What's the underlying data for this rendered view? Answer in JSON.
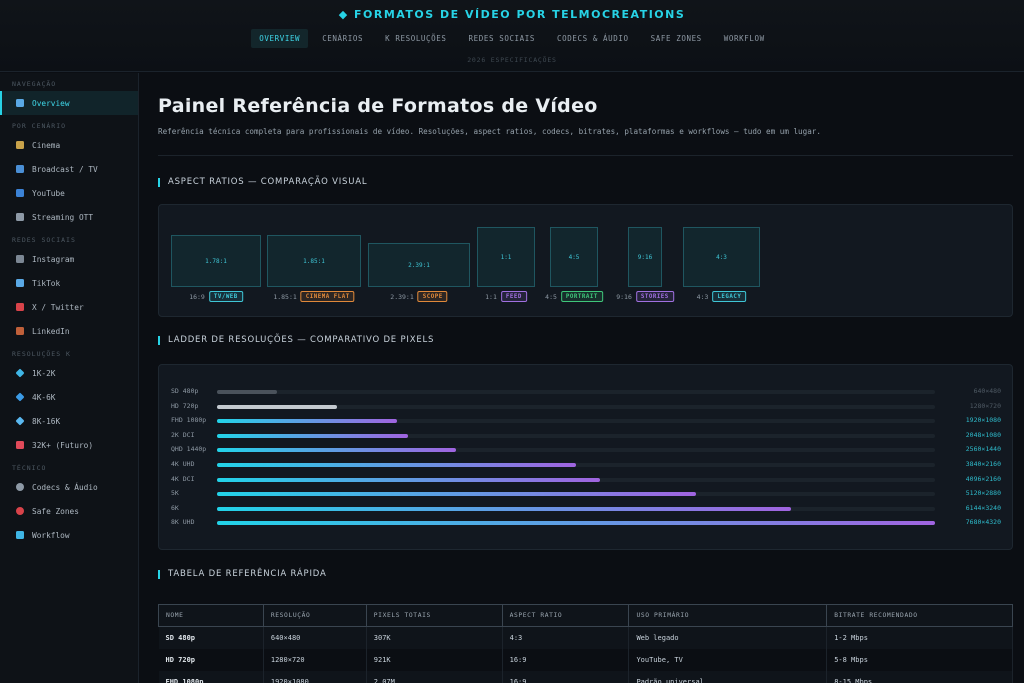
{
  "header": {
    "brand": "◆ FORMATOS DE VÍDEO POR TELMOCREATIONS",
    "subtitle": "2026 ESPECIFICAÇÕES",
    "tabs": [
      {
        "label": "OVERVIEW",
        "active": true
      },
      {
        "label": "CENÁRIOS",
        "active": false
      },
      {
        "label": "K RESOLUÇÕES",
        "active": false
      },
      {
        "label": "REDES SOCIAIS",
        "active": false
      },
      {
        "label": "CODECS & ÁUDIO",
        "active": false
      },
      {
        "label": "SAFE ZONES",
        "active": false
      },
      {
        "label": "WORKFLOW",
        "active": false
      }
    ]
  },
  "sidebar": {
    "sections": [
      {
        "title": "NAVEGAÇÃO",
        "items": [
          {
            "label": "Overview",
            "icon": "chart-icon",
            "color": "#5aa9e6",
            "active": true
          }
        ]
      },
      {
        "title": "POR CENÁRIO",
        "items": [
          {
            "label": "Cinema",
            "icon": "clapperboard-icon",
            "color": "#c8a24a"
          },
          {
            "label": "Broadcast / TV",
            "icon": "tv-icon",
            "color": "#4a8fd6"
          },
          {
            "label": "YouTube",
            "icon": "play-icon",
            "color": "#3b82d6"
          },
          {
            "label": "Streaming OTT",
            "icon": "film-icon",
            "color": "#8d99a6"
          }
        ]
      },
      {
        "title": "REDES SOCIAIS",
        "items": [
          {
            "label": "Instagram",
            "icon": "camera-icon",
            "color": "#7c8794"
          },
          {
            "label": "TikTok",
            "icon": "music-note-icon",
            "color": "#5aa9e6"
          },
          {
            "label": "X / Twitter",
            "icon": "bird-icon",
            "color": "#d8434a"
          },
          {
            "label": "LinkedIn",
            "icon": "briefcase-icon",
            "color": "#c0603a"
          }
        ]
      },
      {
        "title": "RESOLUÇÕES K",
        "items": [
          {
            "label": "1K-2K",
            "icon": "small-diamond-icon",
            "color": "#3fb6e6"
          },
          {
            "label": "4K-6K",
            "icon": "diamond-icon",
            "color": "#3b9be6"
          },
          {
            "label": "8K-16K",
            "icon": "gem-icon",
            "color": "#5ab8f0"
          },
          {
            "label": "32K+ (Futuro)",
            "icon": "sparkle-icon",
            "color": "#e04a5a"
          }
        ]
      },
      {
        "title": "TÉCNICO",
        "items": [
          {
            "label": "Codecs & Áudio",
            "icon": "gear-icon",
            "color": "#8d99a6"
          },
          {
            "label": "Safe Zones",
            "icon": "target-icon",
            "color": "#d8434a"
          },
          {
            "label": "Workflow",
            "icon": "workflow-icon",
            "color": "#3fb6e6"
          }
        ]
      }
    ]
  },
  "main": {
    "title": "Painel Referência de Formatos de Vídeo",
    "description": "Referência técnica completa para profissionais de vídeo. Resoluções, aspect ratios, codecs, bitrates, plataformas e workflows — tudo em um lugar.",
    "aspect_section_title": "ASPECT RATIOS — COMPARAÇÃO VISUAL",
    "aspect_ratios": [
      {
        "ratio": "1.78:1",
        "value": 1.78,
        "caption": "16:9",
        "badge": "TV/WEB",
        "badge_color": "#3fc6d6"
      },
      {
        "ratio": "1.85:1",
        "value": 1.85,
        "caption": "1.85:1",
        "badge": "CINEMA FLAT",
        "badge_color": "#e0893a"
      },
      {
        "ratio": "2.39:1",
        "value": 2.39,
        "caption": "2.39:1",
        "badge": "SCOPE",
        "badge_color": "#e0893a"
      },
      {
        "ratio": "1:1",
        "value": 1.0,
        "caption": "1:1",
        "badge": "FEED",
        "badge_color": "#a070e0"
      },
      {
        "ratio": "4:5",
        "value": 0.8,
        "caption": "4:5",
        "badge": "PORTRAIT",
        "badge_color": "#3fc67a"
      },
      {
        "ratio": "9:16",
        "value": 0.5625,
        "caption": "9:16",
        "badge": "STORIES",
        "badge_color": "#a070e0"
      },
      {
        "ratio": "4:3",
        "value": 1.333,
        "caption": "4:3",
        "badge": "LEGACY",
        "badge_color": "#3fc6d6"
      }
    ],
    "ladder_section_title": "LADDER DE RESOLUÇÕES — COMPARATIVO DE PIXELS",
    "resolutions": [
      {
        "name": "SD 480p",
        "pixels": "640×480",
        "width": 640,
        "style": "gray"
      },
      {
        "name": "HD 720p",
        "pixels": "1280×720",
        "width": 1280,
        "style": "gray"
      },
      {
        "name": "FHD 1080p",
        "pixels": "1920×1080",
        "width": 1920,
        "style": "grad"
      },
      {
        "name": "2K DCI",
        "pixels": "2048×1080",
        "width": 2048,
        "style": "grad"
      },
      {
        "name": "QHD 1440p",
        "pixels": "2560×1440",
        "width": 2560,
        "style": "grad"
      },
      {
        "name": "4K UHD",
        "pixels": "3840×2160",
        "width": 3840,
        "style": "grad"
      },
      {
        "name": "4K DCI",
        "pixels": "4096×2160",
        "width": 4096,
        "style": "grad"
      },
      {
        "name": "5K",
        "pixels": "5120×2880",
        "width": 5120,
        "style": "grad"
      },
      {
        "name": "6K",
        "pixels": "6144×3240",
        "width": 6144,
        "style": "grad"
      },
      {
        "name": "8K UHD",
        "pixels": "7680×4320",
        "width": 7680,
        "style": "grad"
      }
    ],
    "table_section_title": "TABELA DE REFERÊNCIA RÁPIDA",
    "table": {
      "headers": [
        "NOME",
        "RESOLUÇÃO",
        "PIXELS TOTAIS",
        "ASPECT RATIO",
        "USO PRIMÁRIO",
        "BITRATE RECOMENDADO"
      ],
      "rows": [
        [
          "SD 480p",
          "640×480",
          "307K",
          "4:3",
          "Web legado",
          "1-2 Mbps"
        ],
        [
          "HD 720p",
          "1280×720",
          "921K",
          "16:9",
          "YouTube, TV",
          "5-8 Mbps"
        ],
        [
          "FHD 1080p",
          "1920×1080",
          "2.07M",
          "16:9",
          "Padrão universal",
          "8-15 Mbps"
        ]
      ]
    }
  },
  "colors": {
    "accent": "#27d3e6",
    "purple": "#a070e0"
  }
}
